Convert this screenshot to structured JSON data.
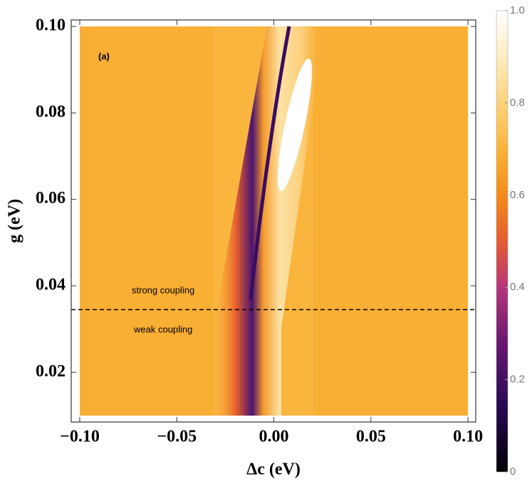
{
  "chart_data": {
    "type": "contour",
    "xlabel": "Δc (eV)",
    "ylabel": "g (eV)",
    "xlim": [
      -0.1044,
      0.104
    ],
    "ylim": [
      0.0085,
      0.1015
    ],
    "xticks": [
      {
        "value": -0.1,
        "label": "−0.10"
      },
      {
        "value": -0.05,
        "label": "−0.05"
      },
      {
        "value": 0,
        "label": "0.00"
      },
      {
        "value": 0.05,
        "label": "0.05"
      },
      {
        "value": 0.1,
        "label": "0.10"
      }
    ],
    "yticks": [
      0.02,
      0.04,
      0.06,
      0.08,
      {
        "value": 0.1,
        "label": "0.10"
      }
    ],
    "colorbar": {
      "lim": [
        0,
        1
      ],
      "ticks": [
        0,
        0.2,
        0.4,
        0.6,
        0.8,
        {
          "value": 1,
          "label": "1.0"
        }
      ]
    },
    "hline": 0.0345,
    "annotations": [
      "(a)",
      "strong coupling",
      "weak coupling"
    ]
  }
}
